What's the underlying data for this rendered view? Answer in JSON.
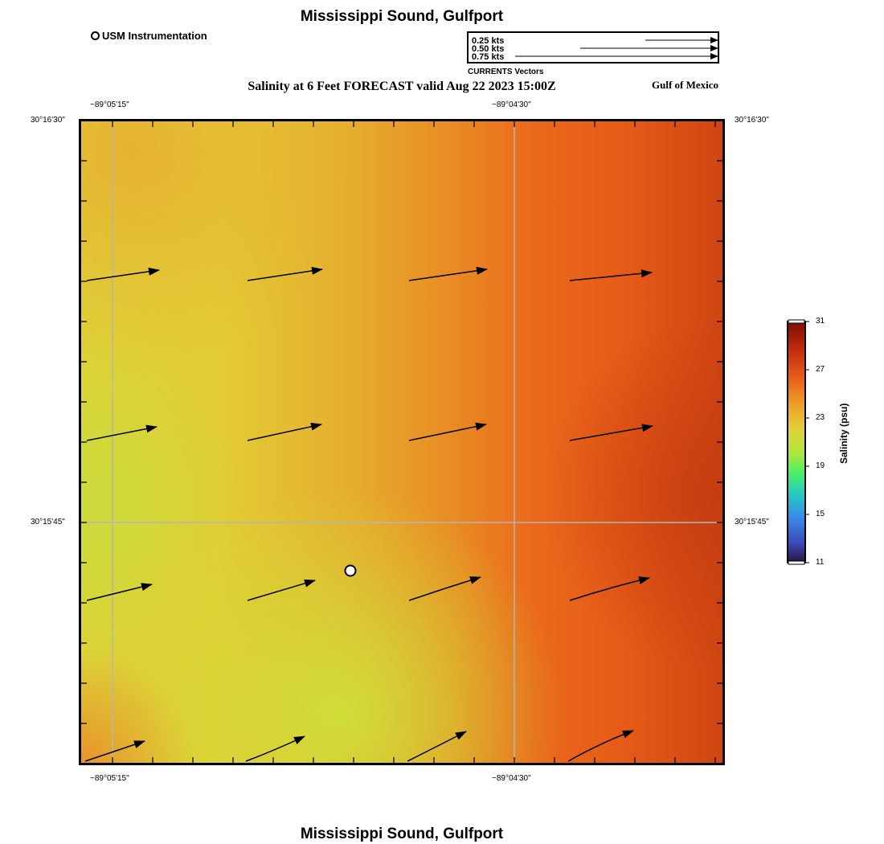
{
  "header": {
    "title": "Mississippi Sound, Gulfport",
    "subtitle": "Salinity at 6 Feet FORECAST valid Aug 22 2023 15:00Z",
    "region_label": "Gulf of Mexico",
    "footer_title": "Mississippi Sound, Gulfport"
  },
  "legend": {
    "station_label": "USM Instrumentation",
    "vectors": {
      "caption": "CURRENTS Vectors",
      "entries": [
        {
          "label": "0.25 kts",
          "speed": 0.25
        },
        {
          "label": "0.50 kts",
          "speed": 0.5
        },
        {
          "label": "0.75 kts",
          "speed": 0.75
        }
      ]
    }
  },
  "map": {
    "lon_ticks": [
      {
        "label": "−89°05'15\"",
        "lon": -89.0875
      },
      {
        "label": "−89°04'30\"",
        "lon": -89.075
      }
    ],
    "lat_ticks": [
      {
        "label": "30°16'30\"",
        "lat": 30.275
      },
      {
        "label": "30°15'45\"",
        "lat": 30.2625
      }
    ],
    "station": {
      "name": "USM Instrumentation"
    },
    "grid": true
  },
  "colorbar": {
    "title": "Salinity (psu)",
    "min": 11,
    "max": 31,
    "ticks": [
      "31",
      "27",
      "23",
      "19",
      "15",
      "11"
    ]
  }
}
